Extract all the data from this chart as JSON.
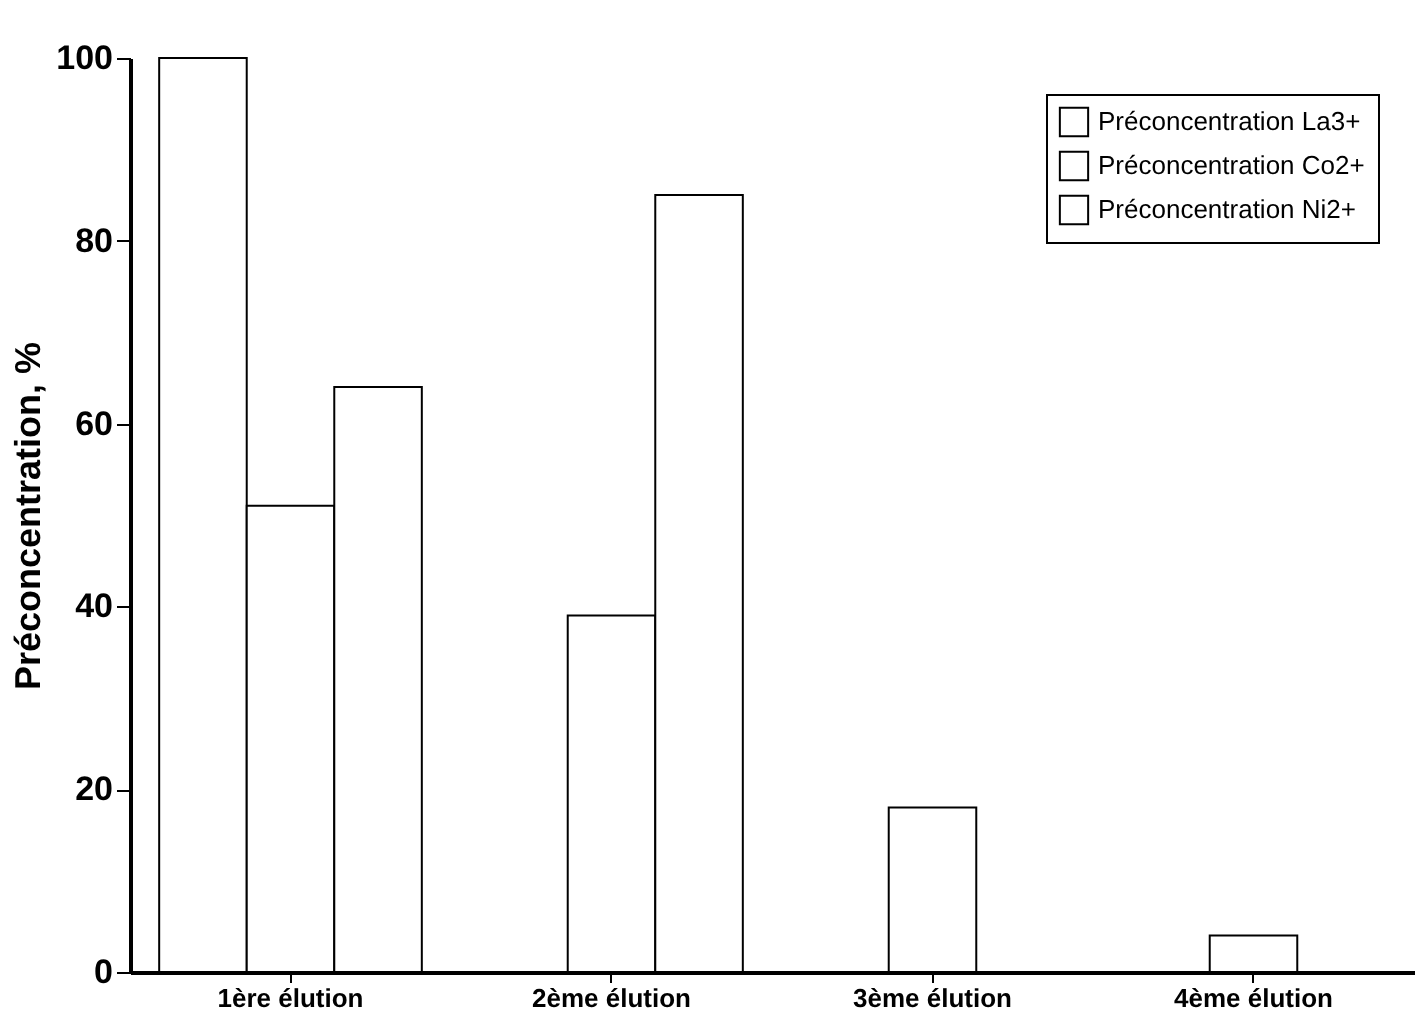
{
  "chart_data": {
    "type": "bar",
    "ylabel": "Préconcentration, %",
    "categories": [
      "1ère élution",
      "2ème élution",
      "3ème élution",
      "4ème élution"
    ],
    "series": [
      {
        "name": "Préconcentration La3+",
        "color": "#ffffff",
        "values": [
          100,
          null,
          null,
          null
        ]
      },
      {
        "name": "Préconcentration Co2+",
        "color": "#ffffff",
        "values": [
          51,
          39,
          18,
          4
        ]
      },
      {
        "name": "Préconcentration Ni2+",
        "color": "#ffffff",
        "values": [
          64,
          85,
          null,
          null
        ]
      }
    ],
    "ylim": [
      0,
      100
    ],
    "yticks": [
      0,
      20,
      40,
      60,
      80,
      100
    ],
    "grid": false,
    "legend": "top right"
  }
}
